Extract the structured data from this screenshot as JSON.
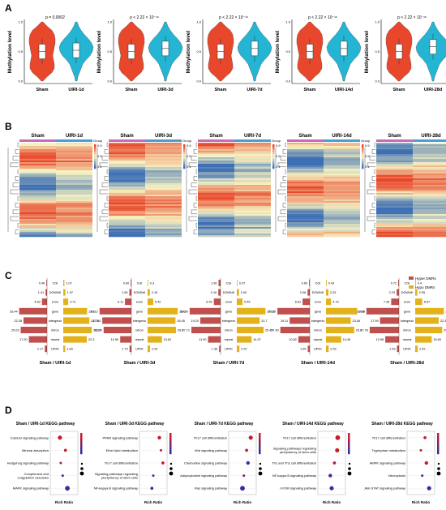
{
  "panel_labels": [
    "A",
    "B",
    "C",
    "D"
  ],
  "colors": {
    "sham_violin": "#e8472b",
    "uiri_violin": "#23b5d3",
    "hyper": "#c0504d",
    "hypo": "#e3b21b",
    "heat_high": "#e8472b",
    "heat_mid": "#f7f3c2",
    "heat_low": "#3d6fb5",
    "kegg_high": "#d7191c",
    "kegg_low": "#2c2ca8"
  },
  "chart_data": [
    {
      "panel": "A",
      "type": "violin",
      "ylabel": "Methylation level",
      "groups": [
        {
          "pval": "p = 0.0002",
          "categories": [
            "Sham",
            "UIRI-1d"
          ],
          "yticks": [
            "1.0",
            "0.5",
            "0.0"
          ],
          "medians": [
            0.5,
            0.52
          ]
        },
        {
          "pval": "p < 2.22 × 10⁻¹⁶",
          "categories": [
            "Sham",
            "UIRI-3d"
          ],
          "yticks": [
            "1.0",
            "0.5",
            "0.0"
          ],
          "medians": [
            0.5,
            0.55
          ]
        },
        {
          "pval": "p < 2.22 × 10⁻¹⁶",
          "categories": [
            "Sham",
            "UIRI-7d"
          ],
          "yticks": [
            "1.0",
            "0.5",
            "0.0"
          ],
          "medians": [
            0.5,
            0.55
          ]
        },
        {
          "pval": "p < 2.22 × 10⁻¹⁶",
          "categories": [
            "Sham",
            "UIRI-14d"
          ],
          "yticks": [
            "1.0",
            "0.5",
            "0.0"
          ],
          "medians": [
            0.5,
            0.55
          ]
        },
        {
          "pval": "p < 2.22 × 10⁻¹⁶",
          "categories": [
            "Sham",
            "UIRI-28d"
          ],
          "yticks": [
            "1.0",
            "0.5",
            "0.0"
          ],
          "medians": [
            0.5,
            0.58
          ]
        }
      ]
    },
    {
      "panel": "B",
      "type": "heatmap",
      "legend_title": "Group",
      "scale_ticks": [
        "0.9",
        "0.5",
        "0.1"
      ],
      "maps": [
        {
          "columns": [
            "Sham",
            "UIRI-1d"
          ]
        },
        {
          "columns": [
            "Sham",
            "UIRI-3d"
          ]
        },
        {
          "columns": [
            "Sham",
            "UIRI-7d"
          ]
        },
        {
          "columns": [
            "Sham",
            "UIRI-14d"
          ]
        },
        {
          "columns": [
            "Sham",
            "UIRI-28d"
          ]
        }
      ]
    },
    {
      "panel": "C",
      "type": "bar",
      "legend": [
        "Hyper DMRs",
        "Hypo DMRs"
      ],
      "categories": [
        "CGI",
        "DOWNK",
        "exon",
        "gene",
        "intergenic",
        "intron",
        "repeat",
        "UP2K"
      ],
      "comparisons": [
        {
          "title": "Sham / UIRI-1d",
          "hyper": [
            0.46,
            1.41,
            4.83,
            26.44,
            22.28,
            25.03,
            17.2,
            2.17
          ],
          "hypo": [
            1.07,
            1.97,
            4.71,
            22.6,
            24.75,
            26.97,
            22.3,
            1.83
          ]
        },
        {
          "title": "Sham / UIRI-3d",
          "hyper": [
            0.6,
            1.95,
            6.11,
            30.12,
            27.64,
            26.29,
            10.59,
            1.79
          ],
          "hypo": [
            0.3,
            2.15,
            5.42,
            28.6,
            26.45,
            26.9,
            13.62,
            2.29
          ]
        },
        {
          "title": "Sham / UIRI-7d",
          "hyper": [
            1.96,
            2.16,
            6.4,
            29.3,
            19.2,
            27.71,
            11.9,
            1.36
          ],
          "hypo": [
            0.37,
            2.09,
            5.45,
            27.16,
            21.7,
            25.49,
            14.07,
            2.57
          ]
        },
        {
          "title": "Sham / UIRI-14d",
          "hyper": [
            0.6,
            2.08,
            6.81,
            30.7,
            19.11,
            27.9,
            10.82,
            1.95
          ],
          "hypo": [
            0.43,
            2.29,
            4.79,
            29.6,
            23.46,
            26.8,
            14.49,
            2.52
          ]
        },
        {
          "title": "Sham / UIRI-28d",
          "hyper": [
            0.72,
            2.23,
            7.36,
            30.86,
            17.99,
            27.76,
            12.98,
            1.93
          ],
          "hypo": [
            0.4,
            2.05,
            6.67,
            27.22,
            22.32,
            25.65,
            15.69,
            2.42
          ]
        }
      ]
    },
    {
      "panel": "D",
      "type": "scatter",
      "xlabel": "Rich Ratio",
      "pathways": [
        {
          "title": "Sham / UIRI-1d KEGG pathway",
          "terms": [
            "Calcium signaling pathway",
            "Mineral absorption",
            "Hedgehog signaling pathway",
            "Complement and coagulation cascades",
            "MAPK signaling pathway"
          ],
          "ratio": [
            0.35,
            0.55,
            0.38,
            0.45,
            0.62
          ],
          "gene_number": [
            5,
            3,
            2,
            2,
            6
          ],
          "qvalue_rank": [
            0.1,
            0.1,
            0.2,
            0.95,
            0.9
          ]
        },
        {
          "title": "Sham / UIRI-3d KEGG pathway",
          "terms": [
            "PPAR signaling pathway",
            "Ether lipid metabolism",
            "Th17 cell differentiation",
            "Signaling pathways regulating pluripotency of stem cells",
            "NF-kappa B signaling pathway"
          ],
          "ratio": [
            0.72,
            0.78,
            0.85,
            0.5,
            0.45
          ],
          "gene_number": [
            4,
            2,
            3,
            2,
            3
          ],
          "qvalue_rank": [
            0.1,
            0.2,
            0.1,
            0.8,
            0.95
          ]
        },
        {
          "title": "Sham / UIRI-7d KEGG pathway",
          "terms": [
            "Th17 cell differentiation",
            "Wnt signaling pathway",
            "Chemokine signaling pathway",
            "Adipocytokine signaling pathway",
            "Ras signaling pathway"
          ],
          "ratio": [
            0.8,
            0.65,
            0.7,
            0.55,
            0.5
          ],
          "gene_number": [
            5,
            3,
            4,
            2,
            6
          ],
          "qvalue_rank": [
            0.1,
            0.15,
            0.9,
            0.6,
            0.95
          ]
        },
        {
          "title": "Sham / UIRI-14d KEGG pathway",
          "terms": [
            "Th17 cell differentiation",
            "Signaling pathways regulating pluripotency of stem cells",
            "Th1 and Th2 cell differentiation",
            "NF-kappa B signaling pathway",
            "mTOR signaling pathway"
          ],
          "ratio": [
            0.72,
            0.7,
            0.6,
            0.45,
            0.5
          ],
          "gene_number": [
            6,
            5,
            3,
            4,
            5
          ],
          "qvalue_rank": [
            0.1,
            0.1,
            0.2,
            0.9,
            0.95
          ]
        },
        {
          "title": "Sham / UIRI-28d KEGG pathway",
          "terms": [
            "Th17 cell differentiation",
            "Tryptophan metabolism",
            "AMPK signaling pathway",
            "Necroptosis",
            "JAK-STAT signaling pathway"
          ],
          "ratio": [
            0.65,
            0.5,
            0.7,
            0.55,
            0.8
          ],
          "gene_number": [
            3,
            2,
            4,
            2,
            5
          ],
          "qvalue_rank": [
            0.1,
            0.15,
            0.1,
            0.85,
            0.95
          ]
        }
      ]
    }
  ]
}
